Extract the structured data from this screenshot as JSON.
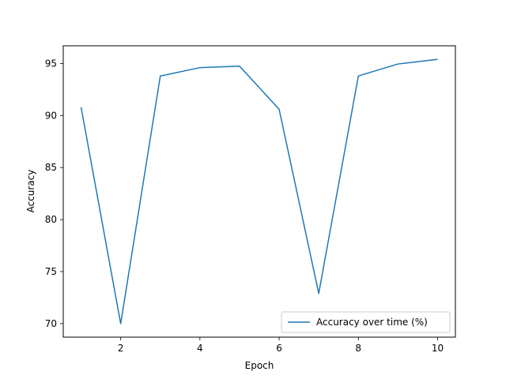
{
  "chart_data": {
    "type": "line",
    "xlabel": "Epoch",
    "ylabel": "Accuracy",
    "xlim": [
      0.55,
      10.45
    ],
    "ylim": [
      68.7,
      96.7
    ],
    "xticks": [
      2,
      4,
      6,
      8,
      10
    ],
    "yticks": [
      70,
      75,
      80,
      85,
      90,
      95
    ],
    "grid": false,
    "legend_position": "lower-right",
    "series": [
      {
        "name": "Accuracy over time (%)",
        "color": "#1f77b4",
        "x": [
          1,
          2,
          3,
          4,
          5,
          6,
          7,
          8,
          9,
          10
        ],
        "y": [
          90.8,
          70.0,
          93.8,
          94.6,
          94.75,
          90.6,
          72.9,
          93.8,
          94.95,
          95.4
        ]
      }
    ]
  }
}
